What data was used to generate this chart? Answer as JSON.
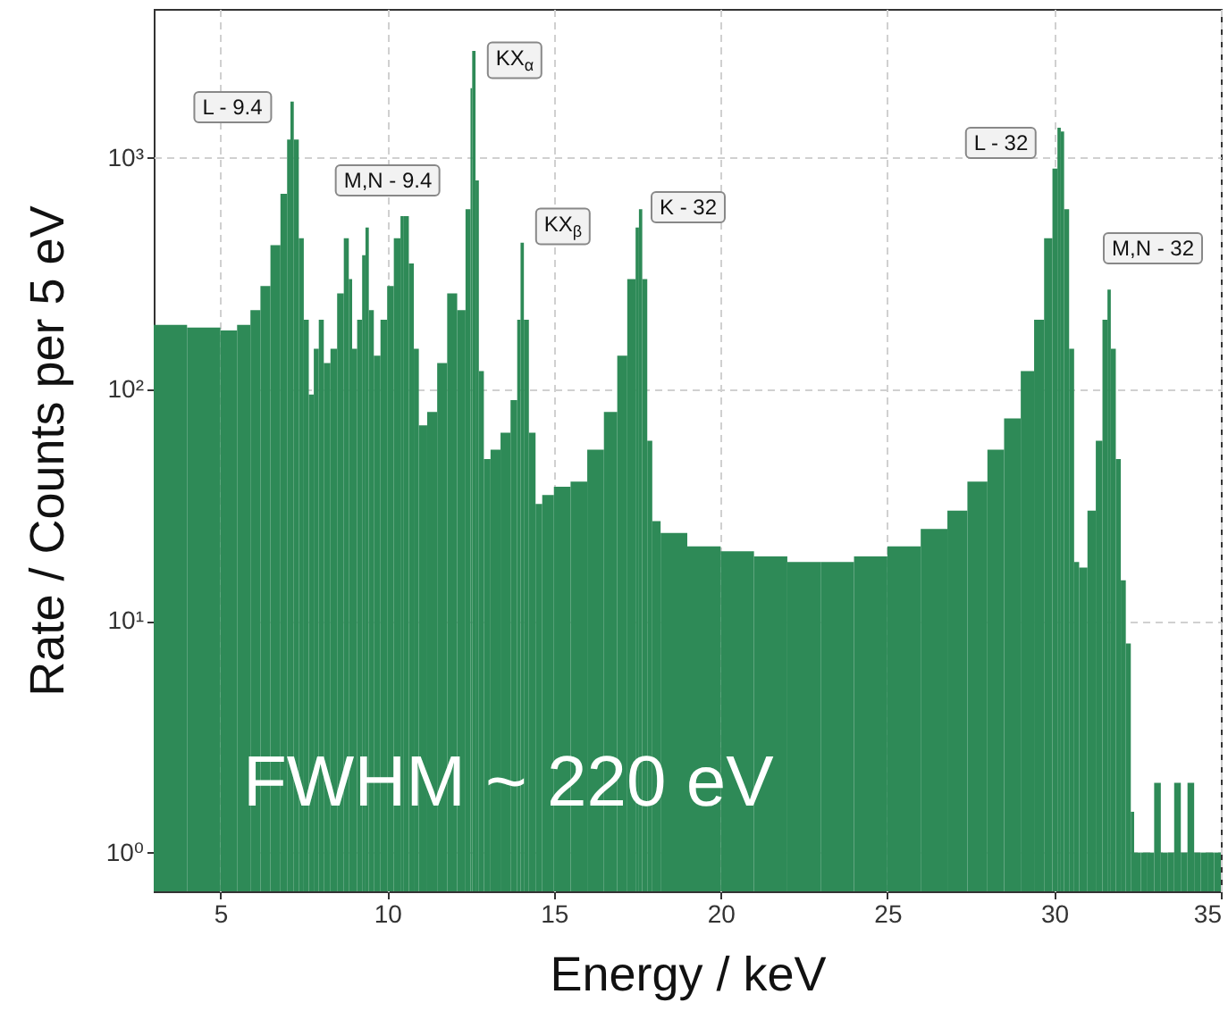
{
  "chart_data": {
    "type": "histogram",
    "xlabel": "Energy / keV",
    "ylabel": "Rate / Counts per 5 eV",
    "color": "#2e8a57",
    "log": "y",
    "grid": true,
    "xlim": [
      3,
      35
    ],
    "xticks": [
      5,
      10,
      15,
      20,
      25,
      30,
      35
    ],
    "ylim": [
      0.68,
      4400
    ],
    "yticks": [
      {
        "value": 1,
        "label": "10⁰"
      },
      {
        "value": 10,
        "label": "10¹"
      },
      {
        "value": 100,
        "label": "10²"
      },
      {
        "value": 1000,
        "label": "10³"
      }
    ],
    "bins": [
      3,
      4,
      5,
      5.5,
      5.9,
      6.2,
      6.5,
      6.8,
      7.0,
      7.1,
      7.2,
      7.35,
      7.5,
      7.65,
      7.8,
      7.95,
      8.1,
      8.3,
      8.5,
      8.7,
      8.85,
      8.95,
      9.1,
      9.25,
      9.35,
      9.45,
      9.6,
      9.8,
      10.0,
      10.2,
      10.4,
      10.5,
      10.65,
      10.8,
      10.95,
      11.2,
      11.5,
      11.8,
      12.1,
      12.35,
      12.5,
      12.55,
      12.65,
      12.75,
      12.9,
      13.1,
      13.4,
      13.7,
      13.9,
      14.0,
      14.1,
      14.25,
      14.45,
      14.65,
      15.0,
      15.5,
      16.0,
      16.5,
      16.9,
      17.2,
      17.45,
      17.55,
      17.65,
      17.8,
      17.95,
      18.2,
      19,
      20,
      21,
      22,
      23,
      24,
      25,
      26,
      26.8,
      27.4,
      28,
      28.5,
      29,
      29.4,
      29.7,
      29.95,
      30.1,
      30.2,
      30.3,
      30.45,
      30.6,
      30.75,
      31.0,
      31.25,
      31.45,
      31.6,
      31.7,
      31.85,
      32.0,
      32.15,
      32.3,
      32.4,
      32.6,
      32.8,
      33,
      33.2,
      33.4,
      33.6,
      33.8,
      34,
      34.2,
      34.4,
      34.6,
      34.8,
      35
    ],
    "values": [
      190,
      185,
      180,
      190,
      220,
      280,
      420,
      700,
      1200,
      1750,
      1200,
      450,
      200,
      95,
      150,
      200,
      130,
      150,
      260,
      450,
      300,
      150,
      200,
      380,
      500,
      220,
      140,
      200,
      280,
      450,
      560,
      560,
      350,
      150,
      70,
      80,
      130,
      260,
      220,
      600,
      2000,
      2900,
      800,
      120,
      50,
      55,
      65,
      90,
      200,
      430,
      200,
      65,
      32,
      35,
      38,
      40,
      55,
      80,
      140,
      300,
      500,
      600,
      300,
      60,
      27,
      24,
      21,
      20,
      19,
      18,
      18,
      19,
      21,
      25,
      30,
      40,
      55,
      75,
      120,
      200,
      450,
      900,
      1350,
      1300,
      600,
      150,
      18,
      17,
      30,
      60,
      200,
      270,
      150,
      50,
      15,
      8,
      1.5,
      1,
      1,
      1,
      2,
      1,
      1,
      2,
      1,
      2,
      1,
      1,
      1,
      1
    ],
    "annotations": [
      "L - 9.4",
      "M,N - 9.4",
      "KX$_{α}$",
      "KX$_{β}$",
      "K - 32",
      "L - 32",
      "M,N - 32",
      "FWHM ~ 220 eV"
    ]
  }
}
